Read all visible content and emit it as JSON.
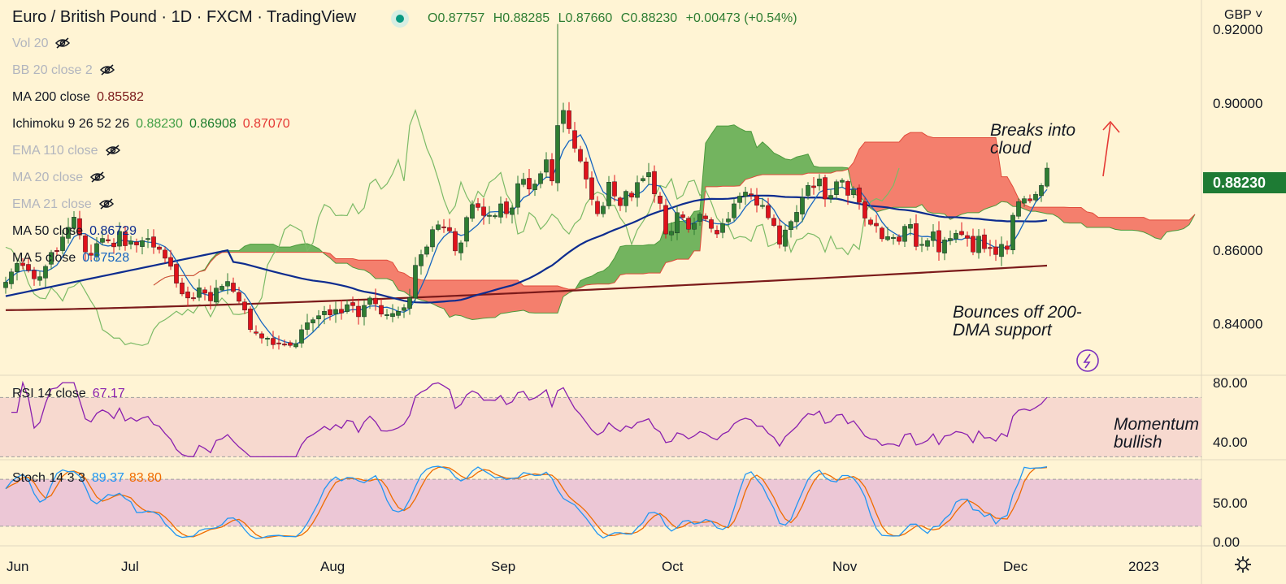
{
  "header": {
    "title": "Euro / British Pound · 1D · FXCM · TradingView",
    "ohlc": {
      "open": "O0.87757",
      "high": "H0.88285",
      "low": "L0.87660",
      "close": "C0.88230",
      "change": "+0.00473 (+0.54%)"
    }
  },
  "currency": "GBP",
  "last_price_label": "0.88230",
  "indicators": [
    {
      "label": "Vol 20",
      "hidden": true,
      "values": []
    },
    {
      "label": "BB 20 close 2",
      "hidden": true,
      "values": []
    },
    {
      "label": "MA 200 close",
      "hidden": false,
      "values": [
        {
          "text": "0.85582",
          "color": "#7b1a1a"
        }
      ]
    },
    {
      "label": "Ichimoku 9 26 52 26",
      "hidden": false,
      "values": [
        {
          "text": "0.88230",
          "color": "#43a047"
        },
        {
          "text": "0.86908",
          "color": "#1b7d2c"
        },
        {
          "text": "0.87070",
          "color": "#e53935"
        }
      ]
    },
    {
      "label": "EMA 110 close",
      "hidden": true,
      "values": []
    },
    {
      "label": "MA 20 close",
      "hidden": true,
      "values": []
    },
    {
      "label": "EMA 21 close",
      "hidden": true,
      "values": []
    },
    {
      "label": "MA 50 close",
      "hidden": false,
      "values": [
        {
          "text": "0.86729",
          "color": "#0d2c8f"
        }
      ]
    },
    {
      "label": "MA 5 close",
      "hidden": false,
      "values": [
        {
          "text": "0.87528",
          "color": "#1565c0"
        }
      ]
    }
  ],
  "rsi_panel": {
    "label": "RSI 14 close",
    "value": "67.17"
  },
  "stoch_panel": {
    "label": "Stoch 14 3 3",
    "k": "89.37",
    "d": "83.80"
  },
  "annotations": {
    "cloud": [
      "Breaks into",
      "cloud"
    ],
    "support": [
      "Bounces off 200-",
      "DMA support"
    ],
    "momentum": [
      "Momentum",
      "bullish"
    ]
  },
  "colors": {
    "background": "#fff4d4",
    "up_candle": "#2e7d32",
    "down_candle": "#e0121b",
    "ma200": "#7b1a1a",
    "ma50": "#0d2c8f",
    "ma5": "#1565c0",
    "cloud_bull": "#5aa84a",
    "cloud_bear": "#f26a5b",
    "rsi": "#8a1fae",
    "stoch_k": "#2196f3",
    "stoch_d": "#ef6c00"
  },
  "chart_data": {
    "type": "candlestick",
    "x_labels": [
      "Jun",
      "Jul",
      "Aug",
      "Sep",
      "Oct",
      "Nov",
      "Dec",
      "2023"
    ],
    "price_axis": {
      "ticks": [
        "0.92000",
        "0.90000",
        "0.86000",
        "0.84000"
      ],
      "ylim": [
        0.826,
        0.928
      ]
    },
    "rsi_axis": {
      "ticks": [
        "80.00",
        "40.00"
      ],
      "ylim": [
        28,
        85
      ],
      "band": [
        30,
        70
      ]
    },
    "stoch_axis": {
      "ticks": [
        "50.00",
        "0.00"
      ],
      "ylim": [
        -5,
        105
      ],
      "band": [
        20,
        80
      ]
    },
    "closes": [
      0.8513,
      0.8541,
      0.8564,
      0.8558,
      0.8545,
      0.8522,
      0.8528,
      0.8556,
      0.8594,
      0.8598,
      0.8636,
      0.8662,
      0.869,
      0.8641,
      0.8595,
      0.8586,
      0.8618,
      0.8632,
      0.8625,
      0.8609,
      0.8651,
      0.8612,
      0.8625,
      0.8614,
      0.8626,
      0.8632,
      0.8608,
      0.8602,
      0.8578,
      0.8556,
      0.851,
      0.8481,
      0.847,
      0.8468,
      0.8498,
      0.8483,
      0.8462,
      0.8497,
      0.8502,
      0.8515,
      0.8488,
      0.8461,
      0.8437,
      0.8384,
      0.8374,
      0.8361,
      0.8361,
      0.8343,
      0.8348,
      0.8344,
      0.8341,
      0.8346,
      0.8384,
      0.8403,
      0.8411,
      0.8422,
      0.8434,
      0.8424,
      0.8439,
      0.8429,
      0.8452,
      0.8449,
      0.8419,
      0.845,
      0.847,
      0.8454,
      0.8426,
      0.8425,
      0.8428,
      0.8434,
      0.8444,
      0.8471,
      0.8559,
      0.8588,
      0.8609,
      0.8656,
      0.8669,
      0.8661,
      0.8652,
      0.8598,
      0.862,
      0.8689,
      0.8724,
      0.8716,
      0.8694,
      0.8695,
      0.8694,
      0.8726,
      0.8699,
      0.8715,
      0.8781,
      0.8793,
      0.8766,
      0.878,
      0.8808,
      0.8846,
      0.8788,
      0.8939,
      0.898,
      0.893,
      0.8877,
      0.8842,
      0.8793,
      0.8738,
      0.8699,
      0.872,
      0.8785,
      0.8747,
      0.8721,
      0.876,
      0.8744,
      0.8784,
      0.8795,
      0.8811,
      0.8753,
      0.8727,
      0.8644,
      0.8651,
      0.8702,
      0.8689,
      0.8657,
      0.8673,
      0.8698,
      0.8685,
      0.8659,
      0.8644,
      0.8672,
      0.8685,
      0.8726,
      0.8747,
      0.8758,
      0.8751,
      0.8722,
      0.8722,
      0.8688,
      0.8667,
      0.8616,
      0.8655,
      0.8678,
      0.8703,
      0.8743,
      0.8776,
      0.877,
      0.8794,
      0.8739,
      0.8749,
      0.8786,
      0.879,
      0.8749,
      0.8764,
      0.873,
      0.8687,
      0.867,
      0.8666,
      0.8631,
      0.8637,
      0.8635,
      0.8624,
      0.8665,
      0.867,
      0.861,
      0.8616,
      0.8626,
      0.865,
      0.8595,
      0.8628,
      0.8632,
      0.8646,
      0.8642,
      0.8632,
      0.8595,
      0.8638,
      0.8604,
      0.8606,
      0.8588,
      0.8616,
      0.8602,
      0.8695,
      0.8732,
      0.874,
      0.8734,
      0.8752,
      0.8776,
      0.8823
    ]
  }
}
